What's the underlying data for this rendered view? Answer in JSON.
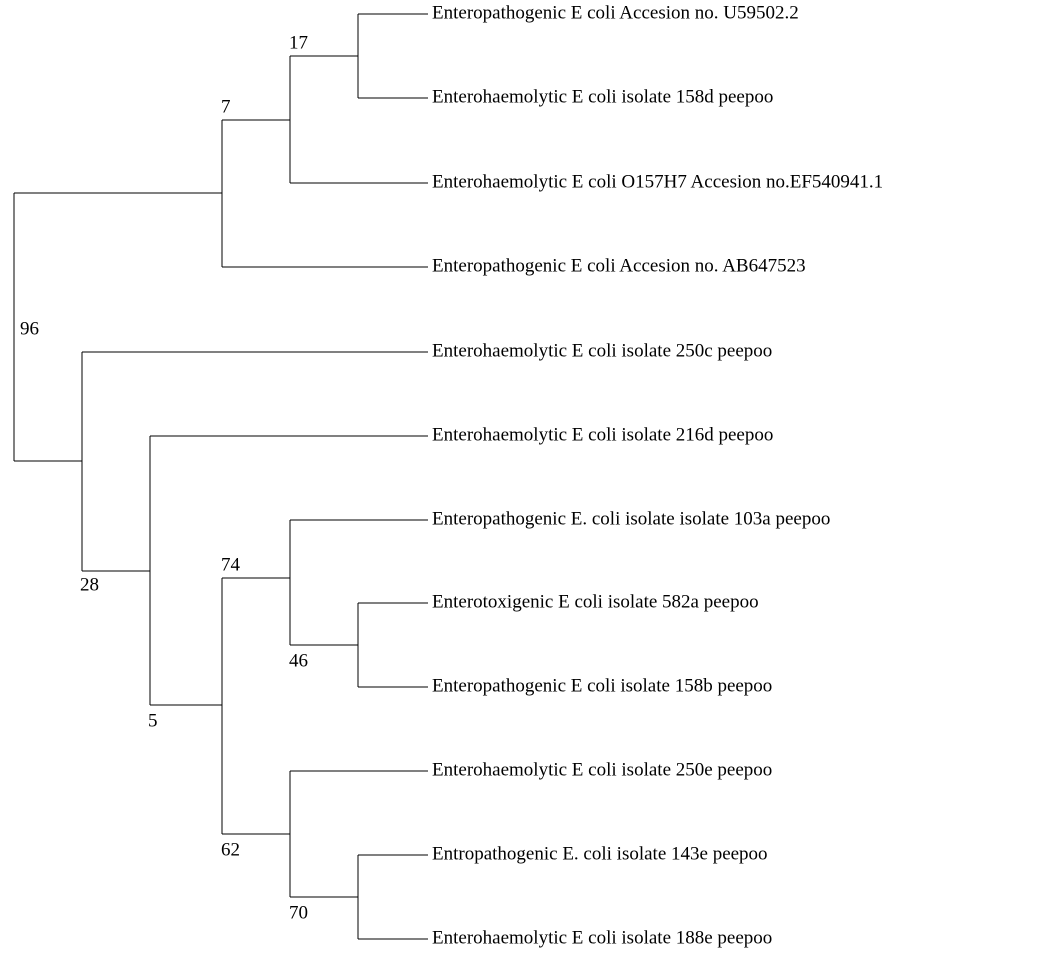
{
  "leaves": [
    "Enteropathogenic E coli Accesion no. U59502.2",
    "Enterohaemolytic E coli isolate 158d peepoo",
    "Enterohaemolytic E coli O157H7 Accesion no.EF540941.1",
    "Enteropathogenic E coli Accesion no. AB647523",
    "Enterohaemolytic E coli isolate 250c peepoo",
    "Enterohaemolytic E coli isolate 216d peepoo",
    "Enteropathogenic E. coli isolate isolate 103a peepoo",
    "Enterotoxigenic E coli isolate 582a peepoo",
    "Enteropathogenic E coli isolate 158b peepoo",
    "Enterohaemolytic E coli isolate 250e peepoo",
    "Entropathogenic E. coli isolate 143e peepoo",
    "Enterohaemolytic E coli isolate 188e peepoo"
  ],
  "bootstrap": [
    "17",
    "7",
    "96",
    "28",
    "74",
    "46",
    "5",
    "62",
    "70"
  ]
}
